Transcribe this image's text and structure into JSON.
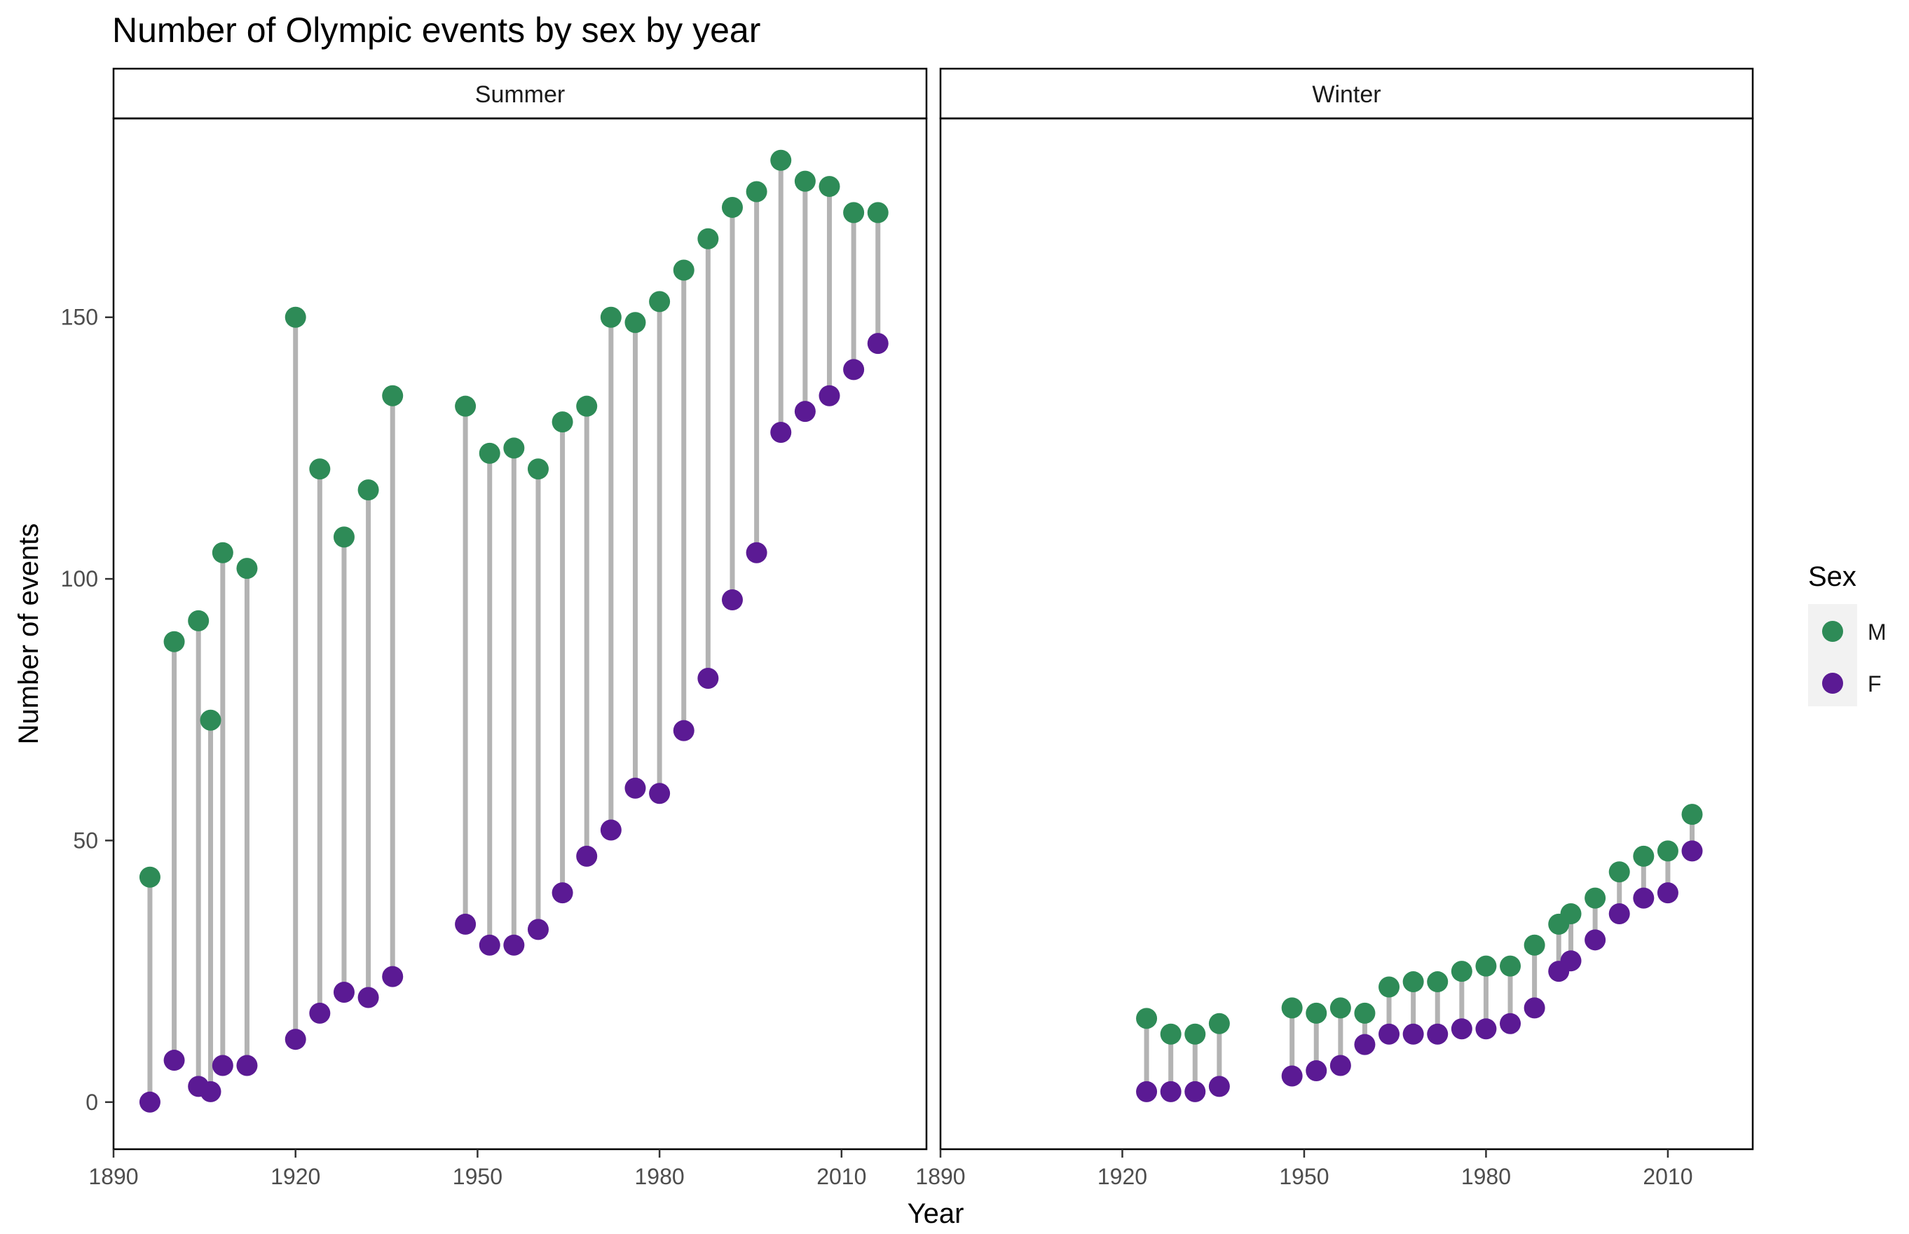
{
  "chart_data": {
    "type": "dumbbell",
    "title": "Number of Olympic events by sex by year",
    "xlabel": "Year",
    "ylabel": "Number of events",
    "xlim": [
      1890,
      2024
    ],
    "ylim": [
      -9,
      188
    ],
    "xticks": [
      1890,
      1920,
      1950,
      1980,
      2010
    ],
    "yticks": [
      0,
      50,
      100,
      150
    ],
    "grid": false,
    "legend": {
      "title": "Sex",
      "position": "right",
      "entries": [
        {
          "label": "M",
          "color": "#2e8b57"
        },
        {
          "label": "F",
          "color": "#5b1a94"
        }
      ]
    },
    "segment_color": "#b3b3b3",
    "panels": [
      {
        "name": "Summer",
        "data": [
          {
            "year": 1896,
            "M": 43,
            "F": 0
          },
          {
            "year": 1900,
            "M": 88,
            "F": 8
          },
          {
            "year": 1904,
            "M": 92,
            "F": 3
          },
          {
            "year": 1906,
            "M": 73,
            "F": 2
          },
          {
            "year": 1908,
            "M": 105,
            "F": 7
          },
          {
            "year": 1912,
            "M": 102,
            "F": 7
          },
          {
            "year": 1920,
            "M": 150,
            "F": 12
          },
          {
            "year": 1924,
            "M": 121,
            "F": 17
          },
          {
            "year": 1928,
            "M": 108,
            "F": 21
          },
          {
            "year": 1932,
            "M": 117,
            "F": 20
          },
          {
            "year": 1936,
            "M": 135,
            "F": 24
          },
          {
            "year": 1948,
            "M": 133,
            "F": 34
          },
          {
            "year": 1952,
            "M": 124,
            "F": 30
          },
          {
            "year": 1956,
            "M": 125,
            "F": 30
          },
          {
            "year": 1960,
            "M": 121,
            "F": 33
          },
          {
            "year": 1964,
            "M": 130,
            "F": 40
          },
          {
            "year": 1968,
            "M": 133,
            "F": 47
          },
          {
            "year": 1972,
            "M": 150,
            "F": 52
          },
          {
            "year": 1976,
            "M": 149,
            "F": 60
          },
          {
            "year": 1980,
            "M": 153,
            "F": 59
          },
          {
            "year": 1984,
            "M": 159,
            "F": 71
          },
          {
            "year": 1988,
            "M": 165,
            "F": 81
          },
          {
            "year": 1992,
            "M": 171,
            "F": 96
          },
          {
            "year": 1996,
            "M": 174,
            "F": 105
          },
          {
            "year": 2000,
            "M": 180,
            "F": 128
          },
          {
            "year": 2004,
            "M": 176,
            "F": 132
          },
          {
            "year": 2008,
            "M": 175,
            "F": 135
          },
          {
            "year": 2012,
            "M": 170,
            "F": 140
          },
          {
            "year": 2016,
            "M": 170,
            "F": 145
          }
        ]
      },
      {
        "name": "Winter",
        "data": [
          {
            "year": 1924,
            "M": 16,
            "F": 2
          },
          {
            "year": 1928,
            "M": 13,
            "F": 2
          },
          {
            "year": 1932,
            "M": 13,
            "F": 2
          },
          {
            "year": 1936,
            "M": 15,
            "F": 3
          },
          {
            "year": 1948,
            "M": 18,
            "F": 5
          },
          {
            "year": 1952,
            "M": 17,
            "F": 6
          },
          {
            "year": 1956,
            "M": 18,
            "F": 7
          },
          {
            "year": 1960,
            "M": 17,
            "F": 11
          },
          {
            "year": 1964,
            "M": 22,
            "F": 13
          },
          {
            "year": 1968,
            "M": 23,
            "F": 13
          },
          {
            "year": 1972,
            "M": 23,
            "F": 13
          },
          {
            "year": 1976,
            "M": 25,
            "F": 14
          },
          {
            "year": 1980,
            "M": 26,
            "F": 14
          },
          {
            "year": 1984,
            "M": 26,
            "F": 15
          },
          {
            "year": 1988,
            "M": 30,
            "F": 18
          },
          {
            "year": 1992,
            "M": 34,
            "F": 25
          },
          {
            "year": 1994,
            "M": 36,
            "F": 27
          },
          {
            "year": 1998,
            "M": 39,
            "F": 31
          },
          {
            "year": 2002,
            "M": 44,
            "F": 36
          },
          {
            "year": 2006,
            "M": 47,
            "F": 39
          },
          {
            "year": 2010,
            "M": 48,
            "F": 40
          },
          {
            "year": 2014,
            "M": 55,
            "F": 48
          }
        ]
      }
    ]
  }
}
